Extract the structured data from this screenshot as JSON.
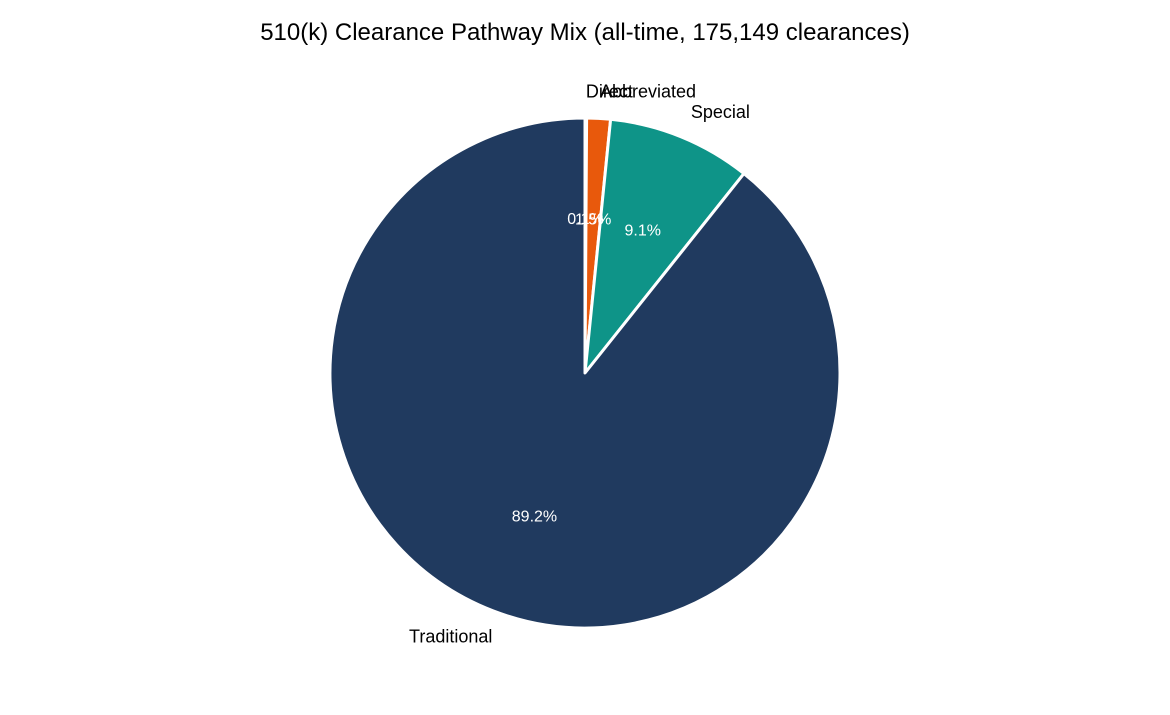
{
  "chart_data": {
    "type": "pie",
    "title": "510(k) Clearance Pathway Mix (all-time, 175,149 clearances)",
    "start_angle_deg": 90,
    "direction": "clockwise",
    "slices": [
      {
        "label": "Direct",
        "value": 0.1,
        "pct_label": "0.1%",
        "color": "#7b3f9e"
      },
      {
        "label": "Abbreviated",
        "value": 1.5,
        "pct_label": "1.5%",
        "color": "#e8590c"
      },
      {
        "label": "Special",
        "value": 9.1,
        "pct_label": "9.1%",
        "color": "#0e9488"
      },
      {
        "label": "Traditional",
        "value": 89.2,
        "pct_label": "89.2%",
        "color": "#203a5f"
      }
    ],
    "slice_edge_color": "#ffffff"
  }
}
